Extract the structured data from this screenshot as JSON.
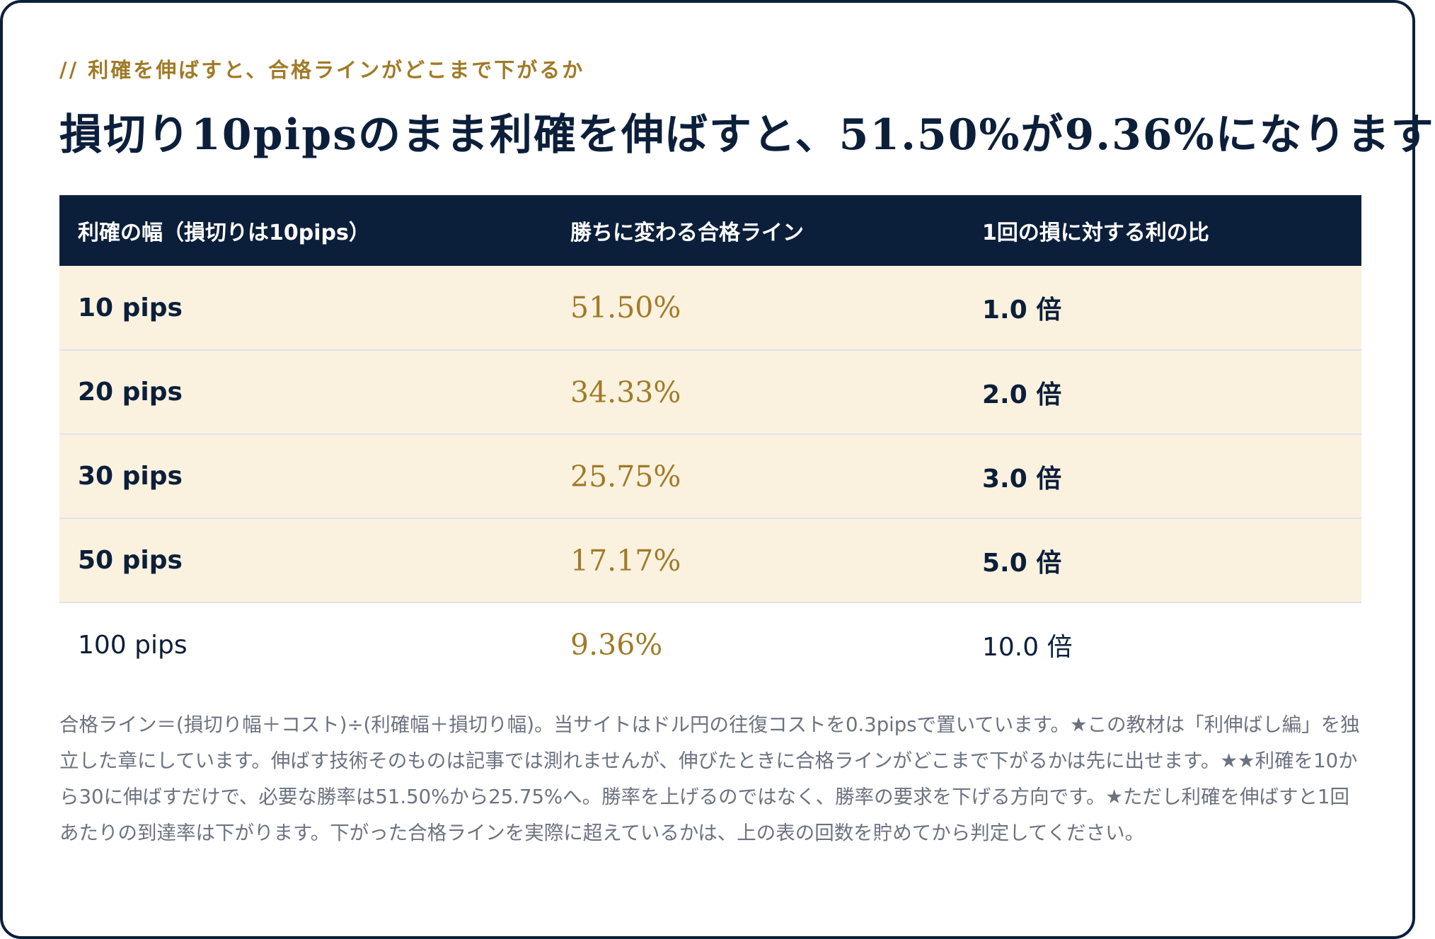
{
  "eyebrow": "// 利確を伸ばすと、合格ラインがどこまで下がるか",
  "heading": "損切り10pipsのまま利確を伸ばすと、51.50%が9.36%になります",
  "table": {
    "headers": [
      "利確の幅（損切りは10pips）",
      "勝ちに変わる合格ライン",
      "1回の損に対する利の比"
    ],
    "rows": [
      {
        "take_profit": "10 pips",
        "pass_line": "51.50%",
        "ratio": "1.0 倍"
      },
      {
        "take_profit": "20 pips",
        "pass_line": "34.33%",
        "ratio": "2.0 倍"
      },
      {
        "take_profit": "30 pips",
        "pass_line": "25.75%",
        "ratio": "3.0 倍"
      },
      {
        "take_profit": "50 pips",
        "pass_line": "17.17%",
        "ratio": "5.0 倍"
      },
      {
        "take_profit": "100 pips",
        "pass_line": "9.36%",
        "ratio": "10.0 倍"
      }
    ]
  },
  "note": "合格ライン＝(損切り幅＋コスト)÷(利確幅＋損切り幅)。当サイトはドル円の往復コストを0.3pipsで置いています。★この教材は「利伸ばし編」を独立した章にしています。伸ばす技術そのものは記事では測れませんが、伸びたときに合格ラインがどこまで下がるかは先に出せます。★★利確を10から30に伸ばすだけで、必要な勝率は51.50%から25.75%へ。勝率を上げるのではなく、勝率の要求を下げる方向です。★ただし利確を伸ばすと1回あたりの到達率は下がります。下がった合格ラインを実際に超えているかは、上の表の回数を貯めてから判定してください。",
  "colors": {
    "navy": "#0c1f3a",
    "gold": "#a07a26",
    "highlight_row": "#faf1df",
    "note_text": "#6b7280"
  }
}
